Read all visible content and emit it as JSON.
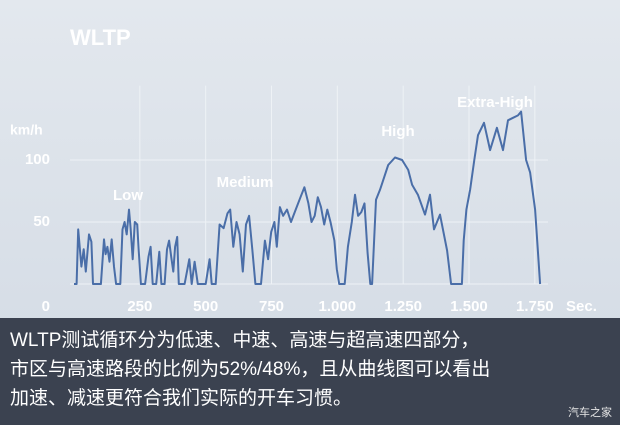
{
  "chart_data": {
    "type": "line",
    "title": "WLTP",
    "y_label": "km/h",
    "x_label": "Sec.",
    "annotations": [
      "Low",
      "Medium",
      "High",
      "Extra-High"
    ],
    "x": [
      0,
      10,
      16,
      28,
      37,
      45,
      57,
      66,
      72,
      90,
      102,
      114,
      120,
      127,
      135,
      143,
      152,
      160,
      176,
      184,
      192,
      200,
      209,
      215,
      223,
      231,
      240,
      246,
      254,
      270,
      283,
      291,
      299,
      312,
      324,
      332,
      344,
      353,
      361,
      369,
      377,
      384,
      392,
      398,
      420,
      438,
      447,
      458,
      470,
      500,
      515,
      523,
      538,
      553,
      568,
      583,
      593,
      605,
      617,
      629,
      641,
      653,
      665,
      677,
      689,
      710,
      725,
      737,
      749,
      761,
      770,
      782,
      794,
      809,
      824,
      842,
      860,
      875,
      890,
      902,
      914,
      926,
      938,
      950,
      962,
      974,
      989,
      998,
      1007,
      1028,
      1040,
      1055,
      1067,
      1079,
      1091,
      1103,
      1115,
      1125,
      1132,
      1147,
      1162,
      1193,
      1219,
      1246,
      1269,
      1284,
      1306,
      1333,
      1352,
      1367,
      1390,
      1417,
      1432,
      1466,
      1473,
      1480,
      1490,
      1504,
      1520,
      1534,
      1557,
      1580,
      1606,
      1629,
      1648,
      1667,
      1686,
      1698,
      1717,
      1732,
      1751,
      1770
    ],
    "series": [
      {
        "color": "#4a6ea8",
        "values": [
          0,
          0,
          44,
          14,
          28,
          10,
          40,
          34,
          0,
          0,
          0,
          36,
          24,
          30,
          18,
          36,
          14,
          0,
          0,
          44,
          50,
          40,
          60,
          45,
          20,
          50,
          48,
          26,
          0,
          0,
          22,
          30,
          0,
          0,
          26,
          0,
          0,
          28,
          35,
          22,
          10,
          30,
          38,
          0,
          0,
          20,
          0,
          18,
          0,
          0,
          20,
          0,
          0,
          48,
          45,
          57,
          60,
          30,
          50,
          40,
          10,
          48,
          55,
          28,
          0,
          0,
          35,
          20,
          42,
          50,
          30,
          62,
          55,
          60,
          50,
          60,
          70,
          78,
          65,
          50,
          55,
          70,
          62,
          48,
          60,
          50,
          35,
          12,
          0,
          0,
          30,
          50,
          72,
          55,
          58,
          65,
          25,
          0,
          0,
          68,
          76,
          96,
          102,
          100,
          92,
          80,
          72,
          56,
          72,
          44,
          56,
          27,
          0,
          0,
          0,
          35,
          60,
          76,
          100,
          120,
          130,
          108,
          126,
          108,
          132,
          134,
          136,
          139,
          100,
          90,
          60,
          0
        ]
      }
    ],
    "xlim": [
      0,
      1800
    ],
    "ylim": [
      0,
      160
    ],
    "xticks": [
      250,
      500,
      750,
      {
        "value": 1000,
        "label": "1.000"
      },
      {
        "value": 1250,
        "label": "1.250"
      },
      {
        "value": 1500,
        "label": "1.500"
      },
      {
        "value": 1750,
        "label": "1.750"
      }
    ],
    "yticks": [
      0,
      50,
      100
    ],
    "grid": true
  },
  "caption": [
    "WLTP测试循环分为低速、中速、高速与超高速四部分，",
    "市区与高速路段的比例为52%/48%，且从曲线图可以看出",
    "加速、减速更符合我们实际的开车习惯。"
  ],
  "watermark": "汽车之家"
}
